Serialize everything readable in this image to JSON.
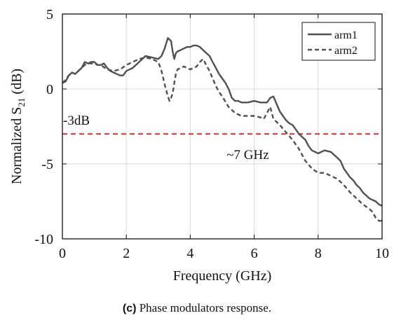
{
  "caption": {
    "tag": "(c)",
    "text": "Phase modulators response."
  },
  "chart_data": {
    "type": "line",
    "title": "",
    "xlabel": "Frequency (GHz)",
    "ylabel_main": "Normalized S",
    "ylabel_sub": "21",
    "ylabel_unit": " (dB)",
    "xlim": [
      0,
      10
    ],
    "ylim": [
      -10,
      5
    ],
    "xticks": [
      0,
      2,
      4,
      6,
      8,
      10
    ],
    "yticks": [
      5,
      0,
      -5,
      -10
    ],
    "grid": true,
    "legend_position": "top-right",
    "colors": {
      "arm1": "#505050",
      "arm2": "#505050",
      "reference": "#d42a2a",
      "grid": "#d9d9d9"
    },
    "reference_line": {
      "y": -3,
      "label": "-3dB"
    },
    "annotations": [
      {
        "text": "~7 GHz",
        "x": 5.8,
        "y": -4.4
      }
    ],
    "series": [
      {
        "name": "arm1",
        "style": "solid",
        "x": [
          0.0,
          0.1,
          0.2,
          0.3,
          0.4,
          0.5,
          0.6,
          0.7,
          0.8,
          0.9,
          1.0,
          1.1,
          1.2,
          1.3,
          1.4,
          1.5,
          1.6,
          1.7,
          1.8,
          1.9,
          2.0,
          2.2,
          2.4,
          2.6,
          2.8,
          3.0,
          3.1,
          3.2,
          3.3,
          3.4,
          3.45,
          3.5,
          3.55,
          3.6,
          3.7,
          3.8,
          3.9,
          4.0,
          4.1,
          4.2,
          4.3,
          4.4,
          4.5,
          4.6,
          4.7,
          4.8,
          4.9,
          5.0,
          5.1,
          5.2,
          5.3,
          5.4,
          5.5,
          5.6,
          5.8,
          6.0,
          6.2,
          6.4,
          6.5,
          6.6,
          6.7,
          6.8,
          6.9,
          7.0,
          7.1,
          7.2,
          7.3,
          7.4,
          7.5,
          7.6,
          7.7,
          7.8,
          8.0,
          8.2,
          8.4,
          8.6,
          8.7,
          8.8,
          8.9,
          9.0,
          9.1,
          9.2,
          9.3,
          9.4,
          9.5,
          9.6,
          9.7,
          9.8,
          9.9,
          10.0
        ],
        "y": [
          0.4,
          0.5,
          0.9,
          1.1,
          1.0,
          1.2,
          1.4,
          1.8,
          1.7,
          1.8,
          1.8,
          1.6,
          1.6,
          1.7,
          1.4,
          1.2,
          1.1,
          1.0,
          0.9,
          0.9,
          1.2,
          1.4,
          1.8,
          2.2,
          2.1,
          2.0,
          2.2,
          2.7,
          3.4,
          3.2,
          2.5,
          2.0,
          2.4,
          2.5,
          2.6,
          2.7,
          2.8,
          2.8,
          2.9,
          2.9,
          2.8,
          2.6,
          2.4,
          2.2,
          1.8,
          1.4,
          1.0,
          0.7,
          0.4,
          0.0,
          -0.6,
          -0.8,
          -0.8,
          -0.9,
          -0.9,
          -0.8,
          -0.9,
          -0.9,
          -0.6,
          -0.5,
          -1.0,
          -1.5,
          -1.8,
          -2.1,
          -2.3,
          -2.4,
          -2.7,
          -3.0,
          -3.2,
          -3.4,
          -3.8,
          -4.1,
          -4.3,
          -4.1,
          -4.2,
          -4.6,
          -4.8,
          -5.3,
          -5.6,
          -5.9,
          -6.1,
          -6.4,
          -6.6,
          -6.9,
          -7.1,
          -7.3,
          -7.4,
          -7.5,
          -7.7,
          -7.8
        ]
      },
      {
        "name": "arm2",
        "style": "dashed",
        "x": [
          0.0,
          0.1,
          0.2,
          0.3,
          0.4,
          0.5,
          0.6,
          0.7,
          0.8,
          0.9,
          1.0,
          1.1,
          1.2,
          1.4,
          1.6,
          1.8,
          2.0,
          2.2,
          2.4,
          2.6,
          2.8,
          3.0,
          3.1,
          3.2,
          3.3,
          3.35,
          3.4,
          3.45,
          3.5,
          3.55,
          3.6,
          3.7,
          3.8,
          3.9,
          4.0,
          4.2,
          4.3,
          4.4,
          4.5,
          4.6,
          4.7,
          4.8,
          4.9,
          5.0,
          5.2,
          5.4,
          5.6,
          5.8,
          6.0,
          6.2,
          6.3,
          6.4,
          6.5,
          6.6,
          6.8,
          7.0,
          7.2,
          7.4,
          7.6,
          7.8,
          8.0,
          8.2,
          8.4,
          8.6,
          8.8,
          9.0,
          9.2,
          9.4,
          9.6,
          9.7,
          9.8,
          9.9,
          10.0
        ],
        "y": [
          0.4,
          0.6,
          0.9,
          1.1,
          1.0,
          1.2,
          1.4,
          1.6,
          1.7,
          1.7,
          1.7,
          1.6,
          1.6,
          1.3,
          1.2,
          1.3,
          1.6,
          1.8,
          2.0,
          2.1,
          2.0,
          1.8,
          1.2,
          0.3,
          -0.5,
          -0.8,
          -0.6,
          -0.3,
          0.4,
          1.0,
          1.3,
          1.4,
          1.5,
          1.4,
          1.3,
          1.5,
          1.8,
          2.0,
          1.6,
          1.2,
          0.7,
          0.2,
          -0.2,
          -0.5,
          -1.2,
          -1.6,
          -1.8,
          -1.8,
          -1.8,
          -1.9,
          -2.0,
          -1.6,
          -1.2,
          -2.0,
          -2.4,
          -2.9,
          -3.4,
          -4.0,
          -4.8,
          -5.3,
          -5.6,
          -5.6,
          -5.8,
          -6.0,
          -6.4,
          -6.9,
          -7.3,
          -7.7,
          -8.0,
          -8.2,
          -8.6,
          -8.8,
          -8.8
        ]
      }
    ]
  }
}
